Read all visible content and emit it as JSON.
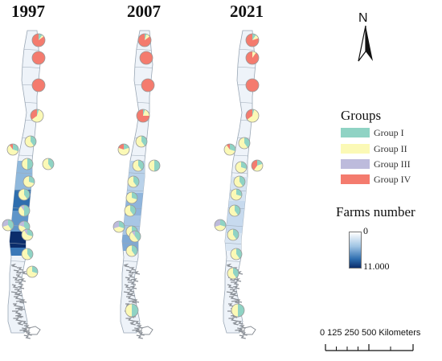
{
  "years": [
    "1997",
    "2007",
    "2021"
  ],
  "north_label": "N",
  "legend": {
    "groups_title": "Groups",
    "groups": [
      {
        "label": "Group  I",
        "color": "#8fd3c4"
      },
      {
        "label": "Group  II",
        "color": "#fbf9b6"
      },
      {
        "label": "Group  III",
        "color": "#bdbbdc"
      },
      {
        "label": "Group  IV",
        "color": "#f47b6e"
      }
    ],
    "farms_title": "Farms number",
    "farms_min": "0",
    "farms_max": "11.000"
  },
  "scale_bar": {
    "text": "0  125 250      500  Kilometers",
    "ticks_km": [
      0,
      125,
      250,
      500
    ]
  },
  "colors": {
    "pie_outline": "#999999",
    "region_outline": "#9aa7b5",
    "patagonia": "#8a8f96"
  }
}
